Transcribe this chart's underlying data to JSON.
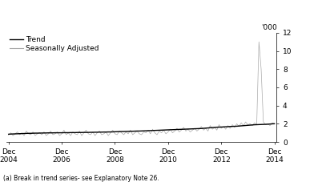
{
  "ylabel_right": "'000",
  "ylim": [
    0,
    12
  ],
  "yticks": [
    0,
    2,
    4,
    6,
    8,
    10,
    12
  ],
  "xlabel_bottom_note": "(a) Break in trend series- see Explanatory Note 26.",
  "legend_entries": [
    "Trend",
    "Seasonally Adjusted"
  ],
  "trend_color": "#000000",
  "seasonal_color": "#aaaaaa",
  "background_color": "#ffffff",
  "x_tick_labels": [
    "Dec\n2004",
    "Dec\n2006",
    "Dec\n2008",
    "Dec\n2010",
    "Dec\n2012",
    "Dec\n2014"
  ],
  "x_tick_positions": [
    0,
    24,
    48,
    72,
    96,
    120
  ],
  "n_points": 121,
  "trend_values": [
    0.85,
    0.87,
    0.88,
    0.89,
    0.9,
    0.91,
    0.92,
    0.93,
    0.94,
    0.95,
    0.95,
    0.96,
    0.97,
    0.97,
    0.98,
    0.98,
    0.99,
    0.99,
    1.0,
    1.0,
    1.0,
    1.01,
    1.01,
    1.01,
    1.01,
    1.02,
    1.02,
    1.02,
    1.03,
    1.03,
    1.03,
    1.04,
    1.04,
    1.04,
    1.05,
    1.05,
    1.05,
    1.06,
    1.06,
    1.07,
    1.07,
    1.08,
    1.08,
    1.09,
    1.09,
    1.1,
    1.1,
    1.11,
    1.12,
    1.13,
    1.14,
    1.15,
    1.15,
    1.16,
    1.17,
    1.18,
    1.18,
    1.19,
    1.2,
    1.2,
    1.21,
    1.22,
    1.23,
    1.24,
    1.25,
    1.26,
    1.27,
    1.28,
    1.29,
    1.3,
    1.31,
    1.32,
    1.33,
    1.34,
    1.35,
    1.36,
    1.37,
    1.38,
    1.39,
    1.4,
    1.41,
    1.42,
    1.43,
    1.44,
    1.45,
    1.46,
    1.47,
    1.48,
    1.5,
    1.52,
    1.54,
    1.56,
    1.58,
    1.6,
    1.62,
    1.63,
    1.64,
    1.65,
    1.67,
    1.68,
    1.7,
    1.71,
    1.72,
    1.73,
    1.75,
    1.77,
    1.79,
    1.81,
    1.83,
    1.85,
    1.87,
    1.89,
    1.9,
    1.91,
    1.92,
    1.93,
    1.94,
    1.95,
    1.97,
    1.99,
    2.0
  ],
  "seasonal_values": [
    0.8,
    1.0,
    0.7,
    0.9,
    1.1,
    0.8,
    1.0,
    0.7,
    1.2,
    0.9,
    0.8,
    1.1,
    0.7,
    0.9,
    1.0,
    0.8,
    1.1,
    0.7,
    0.9,
    1.2,
    0.8,
    0.9,
    1.1,
    0.7,
    0.9,
    1.3,
    0.8,
    1.0,
    0.7,
    1.1,
    0.9,
    0.8,
    1.2,
    0.7,
    1.0,
    1.3,
    0.9,
    0.8,
    1.1,
    0.7,
    1.0,
    1.2,
    0.8,
    0.9,
    1.1,
    0.7,
    1.0,
    1.3,
    0.9,
    0.8,
    1.2,
    1.0,
    0.8,
    1.1,
    0.9,
    1.3,
    0.8,
    1.0,
    1.2,
    0.9,
    0.8,
    1.1,
    1.0,
    1.3,
    0.9,
    1.4,
    1.0,
    0.8,
    1.2,
    1.0,
    1.3,
    0.9,
    1.1,
    1.4,
    1.0,
    1.2,
    1.5,
    1.1,
    1.3,
    1.6,
    1.2,
    1.4,
    1.1,
    1.3,
    1.5,
    1.2,
    1.4,
    1.7,
    1.3,
    1.5,
    1.2,
    1.8,
    1.4,
    1.6,
    1.3,
    1.9,
    1.5,
    1.7,
    1.4,
    1.8,
    1.5,
    1.9,
    1.6,
    2.0,
    1.7,
    2.1,
    1.8,
    2.2,
    1.9,
    2.0,
    1.8,
    2.1,
    1.9,
    11.0,
    8.0,
    2.2,
    1.9,
    2.0,
    1.8,
    2.1,
    2.0
  ]
}
